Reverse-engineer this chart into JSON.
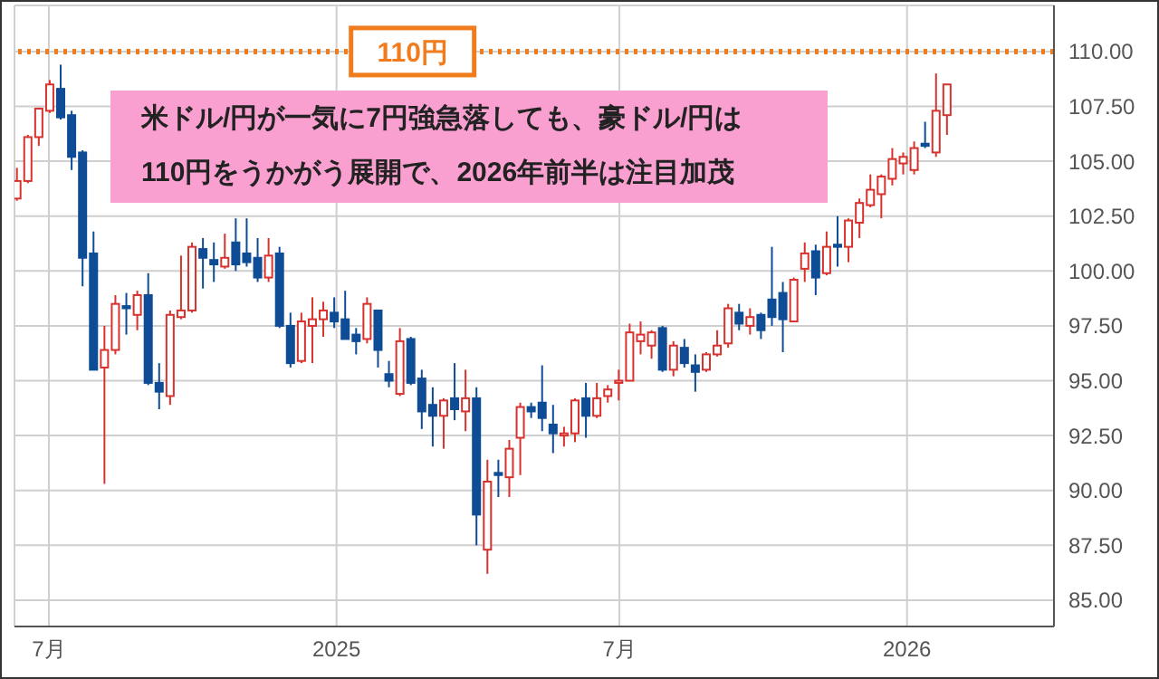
{
  "chart_data": {
    "type": "candlestick",
    "x": [
      "2024-06-10",
      "2024-06-17",
      "2024-06-24",
      "2024-07-01",
      "2024-07-08",
      "2024-07-15",
      "2024-07-22",
      "2024-07-29",
      "2024-08-05",
      "2024-08-12",
      "2024-08-19",
      "2024-08-26",
      "2024-09-02",
      "2024-09-09",
      "2024-09-16",
      "2024-09-23",
      "2024-09-30",
      "2024-10-07",
      "2024-10-14",
      "2024-10-21",
      "2024-10-28",
      "2024-11-04",
      "2024-11-11",
      "2024-11-18",
      "2024-11-25",
      "2024-12-02",
      "2024-12-09",
      "2024-12-16",
      "2024-12-23",
      "2024-12-30",
      "2025-01-06",
      "2025-01-13",
      "2025-01-20",
      "2025-01-27",
      "2025-02-03",
      "2025-02-10",
      "2025-02-17",
      "2025-02-24",
      "2025-03-03",
      "2025-03-10",
      "2025-03-17",
      "2025-03-24",
      "2025-03-31",
      "2025-04-07",
      "2025-04-14",
      "2025-04-21",
      "2025-04-28",
      "2025-05-05",
      "2025-05-12",
      "2025-05-19",
      "2025-05-26",
      "2025-06-02",
      "2025-06-09",
      "2025-06-16",
      "2025-06-23",
      "2025-06-30",
      "2025-07-07",
      "2025-07-14",
      "2025-07-21",
      "2025-07-28",
      "2025-08-04",
      "2025-08-11",
      "2025-08-18",
      "2025-08-25",
      "2025-09-01",
      "2025-09-08",
      "2025-09-15",
      "2025-09-22",
      "2025-09-29",
      "2025-10-06",
      "2025-10-13",
      "2025-10-20",
      "2025-10-27",
      "2025-11-03",
      "2025-11-10",
      "2025-11-17",
      "2025-11-24",
      "2025-12-01",
      "2025-12-08",
      "2025-12-15",
      "2025-12-22",
      "2025-12-29",
      "2026-01-05",
      "2026-01-12",
      "2026-01-19",
      "2026-01-26"
    ],
    "ohlc": [
      [
        103.3,
        104.7,
        103.2,
        104.1
      ],
      [
        104.1,
        106.2,
        104.0,
        106.1
      ],
      [
        106.1,
        107.4,
        105.7,
        107.4
      ],
      [
        107.3,
        108.7,
        107.2,
        108.5
      ],
      [
        108.3,
        109.4,
        106.9,
        107.0
      ],
      [
        107.1,
        107.3,
        104.6,
        105.2
      ],
      [
        105.4,
        105.5,
        99.3,
        100.6
      ],
      [
        100.8,
        101.8,
        95.5,
        95.5
      ],
      [
        95.6,
        97.5,
        90.3,
        96.4
      ],
      [
        96.4,
        98.9,
        96.2,
        98.5
      ],
      [
        98.4,
        99.0,
        97.1,
        98.3
      ],
      [
        98.0,
        99.1,
        97.3,
        98.9
      ],
      [
        98.9,
        99.9,
        94.8,
        94.9
      ],
      [
        94.9,
        95.8,
        93.7,
        94.5
      ],
      [
        94.3,
        98.2,
        93.9,
        98.0
      ],
      [
        97.9,
        100.7,
        97.8,
        98.2
      ],
      [
        98.2,
        101.3,
        98.1,
        101.1
      ],
      [
        101.0,
        101.5,
        99.2,
        100.6
      ],
      [
        100.5,
        101.3,
        99.5,
        100.3
      ],
      [
        100.2,
        101.7,
        100.1,
        100.6
      ],
      [
        101.3,
        102.4,
        100.0,
        100.3
      ],
      [
        100.8,
        102.4,
        100.2,
        100.4
      ],
      [
        100.6,
        101.5,
        99.5,
        99.7
      ],
      [
        99.7,
        101.5,
        99.5,
        100.7
      ],
      [
        100.8,
        101.1,
        97.4,
        97.5
      ],
      [
        97.5,
        98.1,
        95.6,
        95.8
      ],
      [
        95.9,
        98.1,
        95.8,
        97.7
      ],
      [
        97.5,
        98.8,
        95.8,
        97.8
      ],
      [
        97.8,
        98.6,
        97.0,
        98.2
      ],
      [
        98.1,
        98.8,
        97.4,
        97.7
      ],
      [
        97.8,
        99.1,
        96.9,
        96.9
      ],
      [
        97.1,
        97.4,
        96.2,
        96.8
      ],
      [
        96.9,
        98.8,
        96.7,
        98.5
      ],
      [
        98.2,
        98.2,
        95.6,
        96.4
      ],
      [
        95.3,
        95.9,
        94.7,
        95.0
      ],
      [
        94.4,
        97.4,
        94.3,
        96.8
      ],
      [
        96.9,
        97.0,
        94.8,
        94.9
      ],
      [
        95.1,
        95.5,
        92.8,
        93.6
      ],
      [
        93.9,
        94.7,
        92.0,
        93.4
      ],
      [
        93.4,
        94.2,
        91.9,
        94.1
      ],
      [
        94.2,
        95.8,
        93.2,
        93.7
      ],
      [
        93.6,
        95.5,
        92.7,
        94.2
      ],
      [
        94.2,
        94.7,
        87.5,
        88.9
      ],
      [
        87.3,
        91.4,
        86.2,
        90.4
      ],
      [
        90.8,
        91.4,
        89.7,
        90.7
      ],
      [
        90.6,
        92.3,
        89.7,
        91.9
      ],
      [
        92.4,
        94.0,
        90.7,
        93.8
      ],
      [
        93.8,
        94.0,
        93.3,
        93.6
      ],
      [
        94.0,
        95.7,
        92.7,
        93.3
      ],
      [
        93.0,
        93.9,
        91.7,
        92.6
      ],
      [
        92.5,
        92.9,
        92.0,
        92.6
      ],
      [
        92.6,
        94.2,
        92.2,
        94.1
      ],
      [
        94.2,
        94.9,
        92.4,
        93.4
      ],
      [
        93.4,
        94.9,
        93.3,
        94.2
      ],
      [
        94.3,
        94.8,
        94.0,
        94.6
      ],
      [
        94.9,
        95.5,
        94.1,
        95.0
      ],
      [
        95.0,
        97.6,
        95.0,
        97.2
      ],
      [
        96.8,
        97.7,
        96.2,
        97.1
      ],
      [
        96.6,
        97.3,
        96.0,
        97.2
      ],
      [
        97.4,
        97.5,
        95.4,
        95.5
      ],
      [
        95.5,
        96.8,
        95.2,
        96.6
      ],
      [
        96.5,
        96.9,
        95.6,
        95.8
      ],
      [
        95.7,
        96.2,
        94.5,
        95.4
      ],
      [
        95.5,
        96.3,
        95.4,
        96.2
      ],
      [
        96.2,
        97.3,
        96.1,
        96.6
      ],
      [
        96.7,
        98.5,
        96.5,
        98.3
      ],
      [
        98.1,
        98.5,
        97.3,
        97.6
      ],
      [
        97.5,
        98.3,
        97.1,
        97.9
      ],
      [
        98.0,
        98.1,
        96.9,
        97.3
      ],
      [
        98.7,
        101.1,
        97.5,
        97.9
      ],
      [
        99.0,
        99.5,
        96.3,
        97.8
      ],
      [
        97.7,
        99.7,
        97.7,
        99.6
      ],
      [
        100.1,
        101.3,
        99.5,
        100.8
      ],
      [
        100.9,
        101.2,
        98.9,
        99.7
      ],
      [
        99.9,
        101.8,
        99.8,
        101.1
      ],
      [
        101.2,
        102.5,
        100.2,
        101.1
      ],
      [
        101.1,
        102.4,
        100.4,
        102.3
      ],
      [
        102.2,
        103.3,
        101.5,
        103.1
      ],
      [
        103.0,
        104.4,
        102.9,
        103.7
      ],
      [
        103.5,
        104.4,
        102.4,
        104.3
      ],
      [
        104.2,
        105.6,
        103.9,
        105.1
      ],
      [
        104.9,
        105.4,
        104.4,
        105.2
      ],
      [
        104.6,
        105.9,
        104.4,
        105.6
      ],
      [
        105.8,
        106.8,
        105.6,
        105.7
      ],
      [
        105.4,
        109.0,
        105.2,
        107.3
      ],
      [
        107.1,
        108.5,
        106.2,
        108.5
      ]
    ],
    "colors": [
      "#d7322d",
      "#d7322d",
      "#d7322d",
      "#d7322d",
      "#0f4c96",
      "#0f4c96",
      "#0f4c96",
      "#0f4c96",
      "#d7322d",
      "#d7322d",
      "#0f4c96",
      "#d7322d",
      "#0f4c96",
      "#0f4c96",
      "#d7322d",
      "#d7322d",
      "#d7322d",
      "#0f4c96",
      "#0f4c96",
      "#d7322d",
      "#0f4c96",
      "#0f4c96",
      "#0f4c96",
      "#d7322d",
      "#0f4c96",
      "#0f4c96",
      "#d7322d",
      "#d7322d",
      "#d7322d",
      "#0f4c96",
      "#0f4c96",
      "#0f4c96",
      "#d7322d",
      "#0f4c96",
      "#0f4c96",
      "#d7322d",
      "#0f4c96",
      "#0f4c96",
      "#0f4c96",
      "#d7322d",
      "#0f4c96",
      "#d7322d",
      "#0f4c96",
      "#d7322d",
      "#0f4c96",
      "#d7322d",
      "#d7322d",
      "#0f4c96",
      "#0f4c96",
      "#0f4c96",
      "#d7322d",
      "#d7322d",
      "#0f4c96",
      "#d7322d",
      "#d7322d",
      "#d7322d",
      "#d7322d",
      "#d7322d",
      "#d7322d",
      "#0f4c96",
      "#d7322d",
      "#0f4c96",
      "#0f4c96",
      "#d7322d",
      "#d7322d",
      "#d7322d",
      "#0f4c96",
      "#d7322d",
      "#0f4c96",
      "#0f4c96",
      "#0f4c96",
      "#d7322d",
      "#d7322d",
      "#0f4c96",
      "#d7322d",
      "#0f4c96",
      "#d7322d",
      "#d7322d",
      "#d7322d",
      "#d7322d",
      "#d7322d",
      "#d7322d",
      "#d7322d",
      "#0f4c96",
      "#d7322d",
      "#d7322d"
    ],
    "xlim": [
      "2024-06-09",
      "2026-04-05"
    ],
    "xticks": [
      {
        "value": "2024-07-01",
        "label": "7月"
      },
      {
        "value": "2025-01-01",
        "label": "2025"
      },
      {
        "value": "2025-07-01",
        "label": "7月"
      },
      {
        "value": "2026-01-01",
        "label": "2026"
      }
    ],
    "ylim": [
      83.8,
      112.1
    ],
    "yticks": [
      {
        "value": 85,
        "label": "85.00"
      },
      {
        "value": 87.5,
        "label": "87.50"
      },
      {
        "value": 90,
        "label": "90.00"
      },
      {
        "value": 92.5,
        "label": "92.50"
      },
      {
        "value": 95,
        "label": "95.00"
      },
      {
        "value": 97.5,
        "label": "97.50"
      },
      {
        "value": 100,
        "label": "100.00"
      },
      {
        "value": 102.5,
        "label": "102.50"
      },
      {
        "value": 105,
        "label": "105.00"
      },
      {
        "value": 107.5,
        "label": "107.50"
      },
      {
        "value": 110,
        "label": "110.00"
      }
    ],
    "grid": true,
    "ref_lines": [
      {
        "axis": "y",
        "value": 110,
        "label": "110円",
        "color": "#f07c1e",
        "line_style": "dotted"
      }
    ],
    "annotations": [
      "米ドル/円が一気に7円強急落しても、豪ドル/円は\n110円をうかがう展開で、2026年前半は注目加茂"
    ]
  }
}
